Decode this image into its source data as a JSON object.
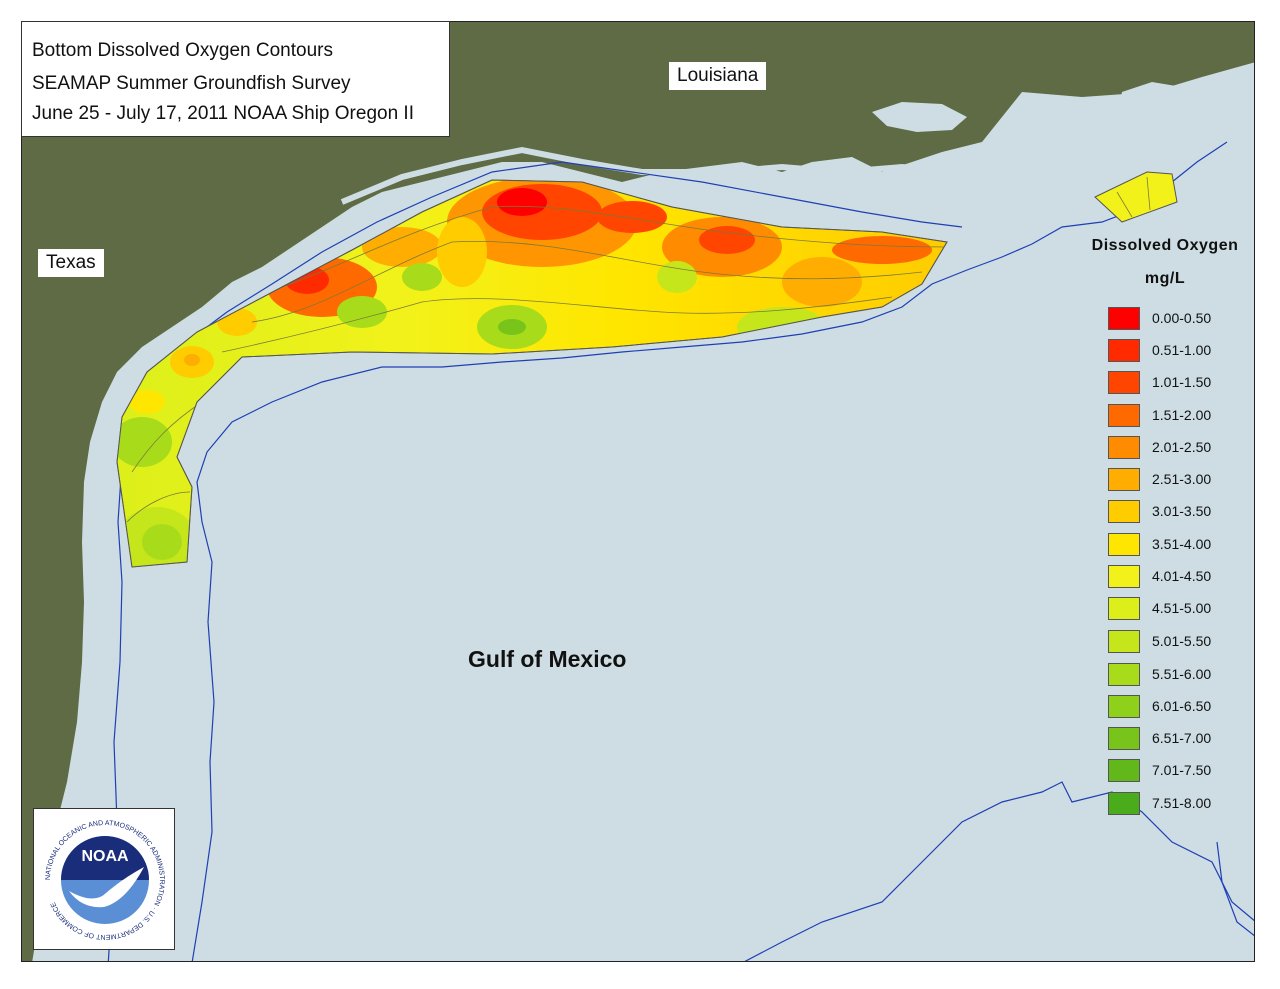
{
  "title": {
    "line1": "Bottom Dissolved Oxygen Contours",
    "line2": "SEAMAP Summer Groundfish Survey",
    "line3": "June 25 - July 17, 2011 NOAA Ship Oregon II"
  },
  "places": {
    "louisiana": "Louisiana",
    "texas": "Texas",
    "gulf": "Gulf of Mexico"
  },
  "legend": {
    "title": "Dissolved Oxygen",
    "units": "mg/L",
    "items": [
      {
        "label": "0.00-0.50",
        "color": "#ff0000"
      },
      {
        "label": "0.51-1.00",
        "color": "#ff2a00"
      },
      {
        "label": "1.01-1.50",
        "color": "#ff4500"
      },
      {
        "label": "1.51-2.00",
        "color": "#ff6a00"
      },
      {
        "label": "2.01-2.50",
        "color": "#ff8c00"
      },
      {
        "label": "2.51-3.00",
        "color": "#ffad00"
      },
      {
        "label": "3.01-3.50",
        "color": "#ffcc00"
      },
      {
        "label": "3.51-4.00",
        "color": "#ffe600"
      },
      {
        "label": "4.01-4.50",
        "color": "#f2f21a"
      },
      {
        "label": "4.51-5.00",
        "color": "#dcef1a"
      },
      {
        "label": "5.01-5.50",
        "color": "#c5e61a"
      },
      {
        "label": "5.51-6.00",
        "color": "#a8dc1a"
      },
      {
        "label": "6.01-6.50",
        "color": "#8fd01a"
      },
      {
        "label": "6.51-7.00",
        "color": "#78c41a"
      },
      {
        "label": "7.01-7.50",
        "color": "#62b81a"
      },
      {
        "label": "7.51-8.00",
        "color": "#4aac1a"
      }
    ]
  },
  "logo": {
    "wordmark": "NOAA",
    "ring_text": "NATIONAL OCEANIC AND ATMOSPHERIC ADMINISTRATION · U.S. DEPARTMENT OF COMMERCE"
  },
  "colors": {
    "land": "#5e6b44",
    "water": "#cddde3",
    "contour_line": "#7a7a3a",
    "depth_line": "#1f3fb5"
  }
}
